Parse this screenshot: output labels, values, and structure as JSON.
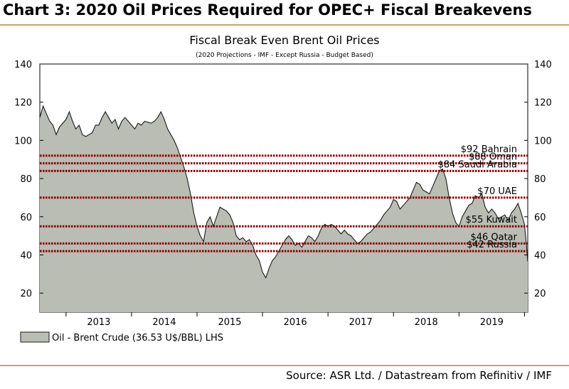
{
  "heading": "Chart 3: 2020 Oil Prices Required for OPEC+ Fiscal Breakevens",
  "source": "Source: ASR Ltd. / Datastream from Refinitiv / IMF",
  "colors": {
    "area_fill": "#b9bdb3",
    "area_line": "#1a1a1a",
    "breakeven_line": "#8b0000",
    "rule": "#c3a86d"
  },
  "chart_data": {
    "type": "area",
    "title": "Fiscal Break Even Brent Oil Prices",
    "subtitle": "(2020 Projections - IMF - Except Russia - Budget Based)",
    "x_tick_labels": [
      "2013",
      "2014",
      "2015",
      "2016",
      "2017",
      "2018",
      "2019"
    ],
    "xlim": [
      2012.6,
      2020.05
    ],
    "ylim": [
      10,
      140
    ],
    "y_ticks": [
      "20",
      "40",
      "60",
      "80",
      "100",
      "120",
      "140"
    ],
    "grid": false,
    "legend_position": "bottom-left",
    "legend": "Oil - Brent Crude  (36.53 U$/BBL) LHS",
    "series": [
      {
        "name": "Oil - Brent Crude",
        "points": [
          [
            2012.6,
            112
          ],
          [
            2012.65,
            118
          ],
          [
            2012.7,
            114
          ],
          [
            2012.75,
            110
          ],
          [
            2012.8,
            108
          ],
          [
            2012.85,
            103
          ],
          [
            2012.9,
            107
          ],
          [
            2013.0,
            111
          ],
          [
            2013.05,
            115
          ],
          [
            2013.1,
            110
          ],
          [
            2013.15,
            106
          ],
          [
            2013.2,
            108
          ],
          [
            2013.25,
            103
          ],
          [
            2013.3,
            102
          ],
          [
            2013.4,
            104
          ],
          [
            2013.45,
            108
          ],
          [
            2013.5,
            108
          ],
          [
            2013.55,
            112
          ],
          [
            2013.6,
            115
          ],
          [
            2013.65,
            112
          ],
          [
            2013.7,
            109
          ],
          [
            2013.75,
            111
          ],
          [
            2013.8,
            106
          ],
          [
            2013.85,
            110
          ],
          [
            2013.9,
            112
          ],
          [
            2013.95,
            110
          ],
          [
            2014.0,
            108
          ],
          [
            2014.05,
            106
          ],
          [
            2014.1,
            109
          ],
          [
            2014.15,
            108
          ],
          [
            2014.2,
            110
          ],
          [
            2014.3,
            109
          ],
          [
            2014.35,
            110
          ],
          [
            2014.4,
            112
          ],
          [
            2014.45,
            115
          ],
          [
            2014.5,
            111
          ],
          [
            2014.55,
            106
          ],
          [
            2014.6,
            103
          ],
          [
            2014.65,
            100
          ],
          [
            2014.7,
            96
          ],
          [
            2014.75,
            91
          ],
          [
            2014.8,
            86
          ],
          [
            2014.85,
            80
          ],
          [
            2014.9,
            72
          ],
          [
            2014.95,
            62
          ],
          [
            2015.0,
            55
          ],
          [
            2015.05,
            50
          ],
          [
            2015.1,
            47
          ],
          [
            2015.15,
            57
          ],
          [
            2015.2,
            60
          ],
          [
            2015.25,
            55
          ],
          [
            2015.3,
            60
          ],
          [
            2015.35,
            65
          ],
          [
            2015.4,
            64
          ],
          [
            2015.45,
            63
          ],
          [
            2015.5,
            61
          ],
          [
            2015.55,
            57
          ],
          [
            2015.6,
            50
          ],
          [
            2015.65,
            48
          ],
          [
            2015.7,
            49
          ],
          [
            2015.75,
            47
          ],
          [
            2015.8,
            48
          ],
          [
            2015.85,
            45
          ],
          [
            2015.9,
            40
          ],
          [
            2015.95,
            37
          ],
          [
            2016.0,
            31
          ],
          [
            2016.05,
            28
          ],
          [
            2016.1,
            33
          ],
          [
            2016.15,
            37
          ],
          [
            2016.2,
            39
          ],
          [
            2016.25,
            42
          ],
          [
            2016.3,
            45
          ],
          [
            2016.35,
            48
          ],
          [
            2016.4,
            50
          ],
          [
            2016.45,
            48
          ],
          [
            2016.5,
            45
          ],
          [
            2016.55,
            46
          ],
          [
            2016.6,
            44
          ],
          [
            2016.65,
            47
          ],
          [
            2016.7,
            50
          ],
          [
            2016.75,
            49
          ],
          [
            2016.8,
            47
          ],
          [
            2016.85,
            50
          ],
          [
            2016.9,
            54
          ],
          [
            2016.95,
            56
          ],
          [
            2017.0,
            55
          ],
          [
            2017.05,
            56
          ],
          [
            2017.1,
            55
          ],
          [
            2017.15,
            53
          ],
          [
            2017.2,
            51
          ],
          [
            2017.25,
            53
          ],
          [
            2017.3,
            51
          ],
          [
            2017.35,
            50
          ],
          [
            2017.4,
            48
          ],
          [
            2017.45,
            46
          ],
          [
            2017.5,
            47
          ],
          [
            2017.55,
            49
          ],
          [
            2017.6,
            51
          ],
          [
            2017.65,
            52
          ],
          [
            2017.7,
            54
          ],
          [
            2017.75,
            56
          ],
          [
            2017.8,
            58
          ],
          [
            2017.85,
            61
          ],
          [
            2017.9,
            63
          ],
          [
            2017.95,
            65
          ],
          [
            2018.0,
            69
          ],
          [
            2018.05,
            68
          ],
          [
            2018.1,
            64
          ],
          [
            2018.15,
            66
          ],
          [
            2018.2,
            68
          ],
          [
            2018.25,
            70
          ],
          [
            2018.3,
            74
          ],
          [
            2018.35,
            78
          ],
          [
            2018.4,
            77
          ],
          [
            2018.45,
            74
          ],
          [
            2018.5,
            73
          ],
          [
            2018.55,
            72
          ],
          [
            2018.6,
            76
          ],
          [
            2018.65,
            80
          ],
          [
            2018.7,
            84
          ],
          [
            2018.75,
            85
          ],
          [
            2018.8,
            80
          ],
          [
            2018.85,
            70
          ],
          [
            2018.9,
            62
          ],
          [
            2018.95,
            57
          ],
          [
            2019.0,
            55
          ],
          [
            2019.05,
            60
          ],
          [
            2019.1,
            63
          ],
          [
            2019.15,
            66
          ],
          [
            2019.2,
            67
          ],
          [
            2019.25,
            71
          ],
          [
            2019.3,
            70
          ],
          [
            2019.35,
            72
          ],
          [
            2019.4,
            65
          ],
          [
            2019.45,
            62
          ],
          [
            2019.5,
            64
          ],
          [
            2019.55,
            62
          ],
          [
            2019.6,
            59
          ],
          [
            2019.65,
            60
          ],
          [
            2019.7,
            61
          ],
          [
            2019.75,
            58
          ],
          [
            2019.8,
            62
          ],
          [
            2019.85,
            64
          ],
          [
            2019.9,
            67
          ],
          [
            2019.95,
            62
          ],
          [
            2020.0,
            56
          ],
          [
            2020.03,
            45
          ],
          [
            2020.05,
            36.53
          ]
        ]
      }
    ],
    "reference_lines": [
      {
        "label": "$92 Bahrain",
        "value": 92
      },
      {
        "label": "$88 Oman",
        "value": 88
      },
      {
        "label": "$84 Saudi Arabia",
        "value": 84
      },
      {
        "label": "$70 UAE",
        "value": 70
      },
      {
        "label": "$55 Kuwait",
        "value": 55
      },
      {
        "label": "$46 Qatar",
        "value": 46
      },
      {
        "label": "$42 Russia",
        "value": 42
      }
    ]
  }
}
